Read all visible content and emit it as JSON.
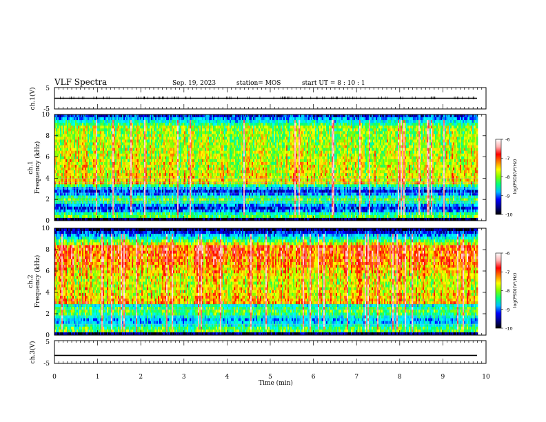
{
  "header": {
    "title": "VLF Spectra",
    "date": "Sep. 19, 2023",
    "station": "station= MOS",
    "start": "start  UT =   8 : 10 : 1"
  },
  "axes": {
    "xlabel": "Time  (min)",
    "ch1_volt_label": "ch.1(V)",
    "ch1_freq_label_1": "ch.1",
    "ch1_freq_label_2": "Frequency  (kHz)",
    "ch2_freq_label_1": "ch.2",
    "ch2_freq_label_2": "Frequency  (kHz)",
    "ch3_volt_label": "ch.3(V)",
    "colorbar_label": "log(PSD)(V²/Hz)"
  },
  "colors": {
    "scale": [
      "#000000",
      "#00008b",
      "#0000ff",
      "#00bfff",
      "#00ffff",
      "#00ff7f",
      "#7fff00",
      "#ffff00",
      "#ff7f00",
      "#ff0000",
      "#ffb0b0",
      "#ffffff"
    ]
  },
  "chart_data": [
    {
      "type": "line",
      "name": "ch1_voltage",
      "ylabel": "ch.1(V)",
      "ylim": [
        -5,
        5
      ],
      "y_ticks": [
        "5",
        "-5"
      ],
      "x": [
        0,
        10
      ],
      "values": [
        0,
        0
      ]
    },
    {
      "type": "heatmap",
      "name": "ch1_spectrogram",
      "ylabel": "Frequency (kHz)",
      "ylim": [
        0,
        10
      ],
      "y_ticks": [
        "0",
        "2",
        "4",
        "6",
        "8",
        "10"
      ],
      "x_range_min": [
        0,
        9.8
      ],
      "zlim": [
        -10,
        -6
      ],
      "colorbar_ticks": [
        "-6",
        "-7",
        "-8",
        "-9",
        "-10"
      ]
    },
    {
      "type": "heatmap",
      "name": "ch2_spectrogram",
      "ylabel": "Frequency (kHz)",
      "ylim": [
        0,
        10
      ],
      "y_ticks": [
        "0",
        "2",
        "4",
        "6",
        "8",
        "10"
      ],
      "x_range_min": [
        0,
        9.8
      ],
      "zlim": [
        -10,
        -6
      ],
      "colorbar_ticks": [
        "-6",
        "-7",
        "-8",
        "-9",
        "-10"
      ]
    },
    {
      "type": "line",
      "name": "ch3_voltage",
      "ylabel": "ch.3(V)",
      "ylim": [
        -5,
        5
      ],
      "y_ticks": [
        "5",
        "-5"
      ],
      "x": [
        0,
        10
      ],
      "values": [
        -1.5,
        -1.5
      ]
    }
  ],
  "x_axis": {
    "xlim": [
      0,
      10
    ],
    "ticks": [
      "0",
      "1",
      "2",
      "3",
      "4",
      "5",
      "6",
      "7",
      "8",
      "9",
      "10"
    ]
  }
}
